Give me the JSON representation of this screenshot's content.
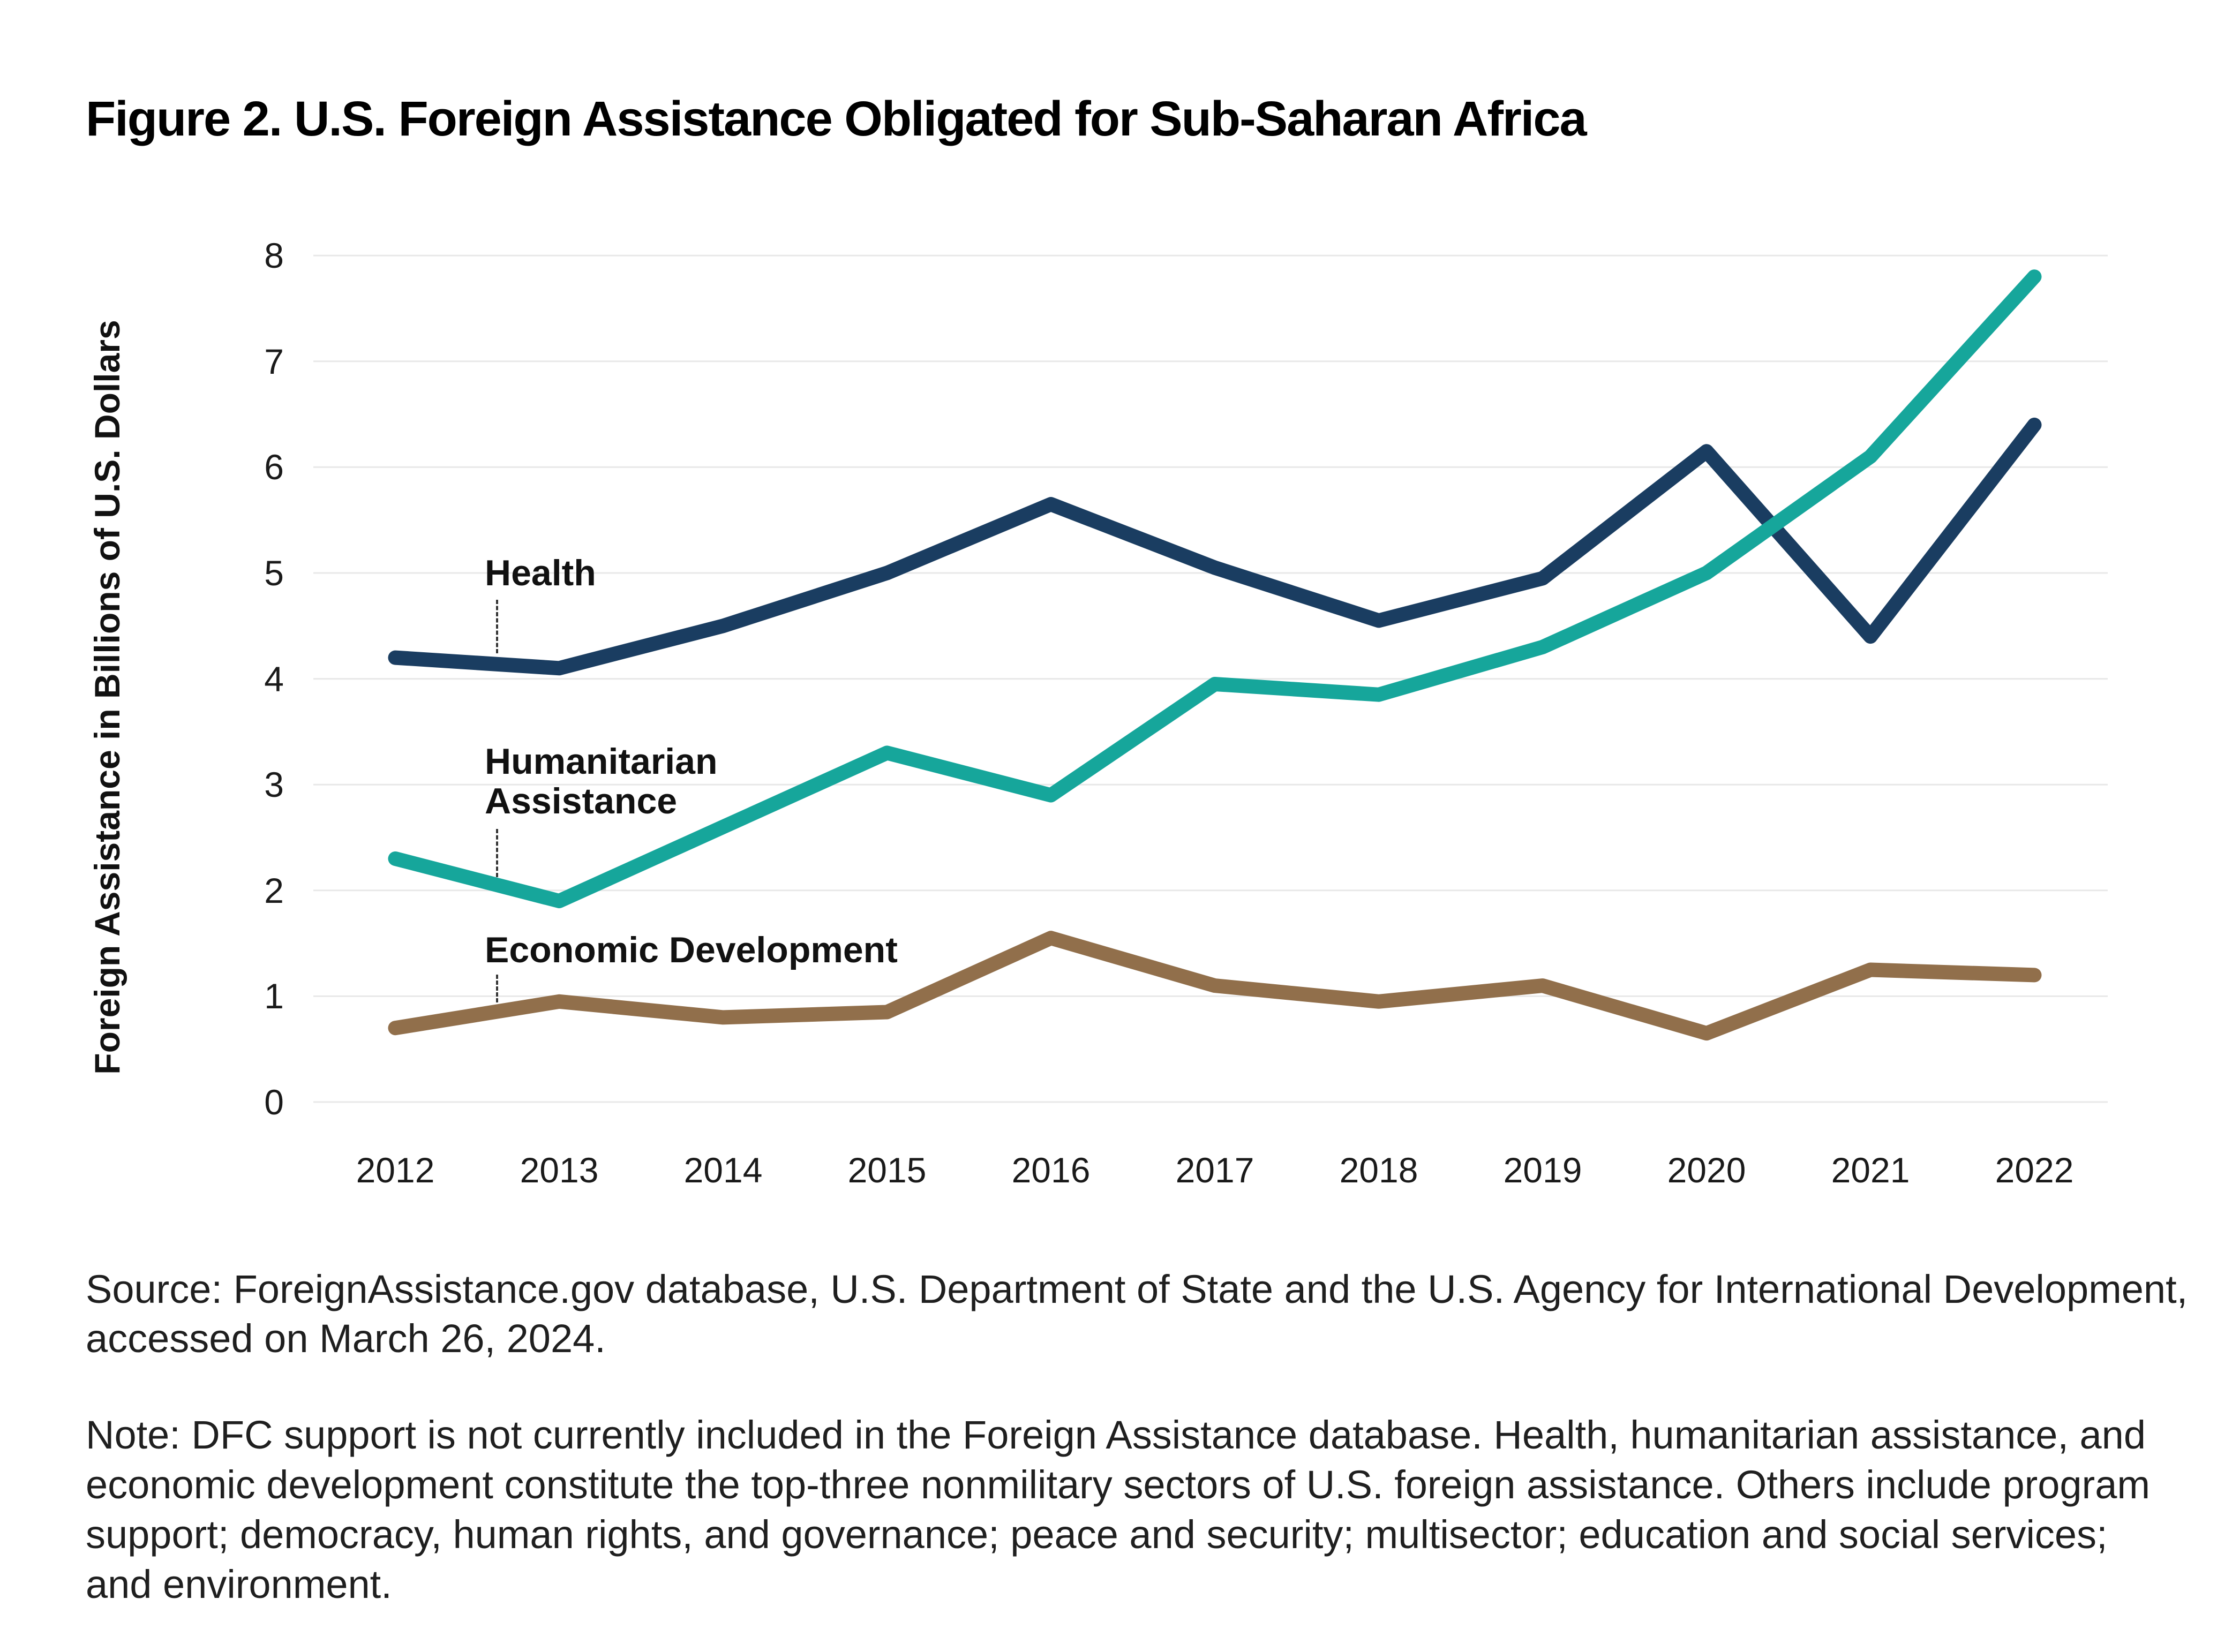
{
  "title": "Figure 2. U.S. Foreign Assistance Obligated for Sub-Saharan Africa",
  "chart_data": {
    "type": "line",
    "title": "Figure 2. U.S. Foreign Assistance Obligated for Sub-Saharan Africa",
    "xlabel": "",
    "ylabel": "Foreign Assistance in Billions of U.S. Dollars",
    "ylim": [
      0,
      8
    ],
    "grid": "horizontal",
    "legend_position": "inline-annotations",
    "categories": [
      "2012",
      "2013",
      "2014",
      "2015",
      "2016",
      "2017",
      "2018",
      "2019",
      "2020",
      "2021",
      "2022"
    ],
    "y_ticks": [
      0,
      1,
      2,
      3,
      4,
      5,
      6,
      7,
      8
    ],
    "series": [
      {
        "name": "Health",
        "color": "#1a3d61",
        "values": [
          4.2,
          4.1,
          4.5,
          5.0,
          5.65,
          5.05,
          4.55,
          4.95,
          6.15,
          4.4,
          6.4
        ]
      },
      {
        "name": "Humanitarian Assistance",
        "color": "#16a69b",
        "values": [
          2.3,
          1.9,
          2.6,
          3.3,
          2.9,
          3.95,
          3.85,
          4.3,
          5.0,
          6.1,
          7.8
        ]
      },
      {
        "name": "Economic Development",
        "color": "#916f4b",
        "values": [
          0.7,
          0.95,
          0.8,
          0.85,
          1.55,
          1.1,
          0.95,
          1.1,
          0.65,
          1.25,
          1.2
        ]
      }
    ]
  },
  "source": {
    "line1": "Source: ForeignAssistance.gov database, U.S. Department of State and the U.S. Agency for International Development,",
    "line2": "accessed on March 26, 2024."
  },
  "note": {
    "line1": "Note: DFC support is not currently included in the Foreign Assistance database. Health, humanitarian assistance, and",
    "line2": "economic development constitute the top-three nonmilitary sectors of U.S. foreign assistance. Others include program",
    "line3": "support; democracy, human rights, and governance; peace and security; multisector; education and social services;",
    "line4": "and environment."
  }
}
